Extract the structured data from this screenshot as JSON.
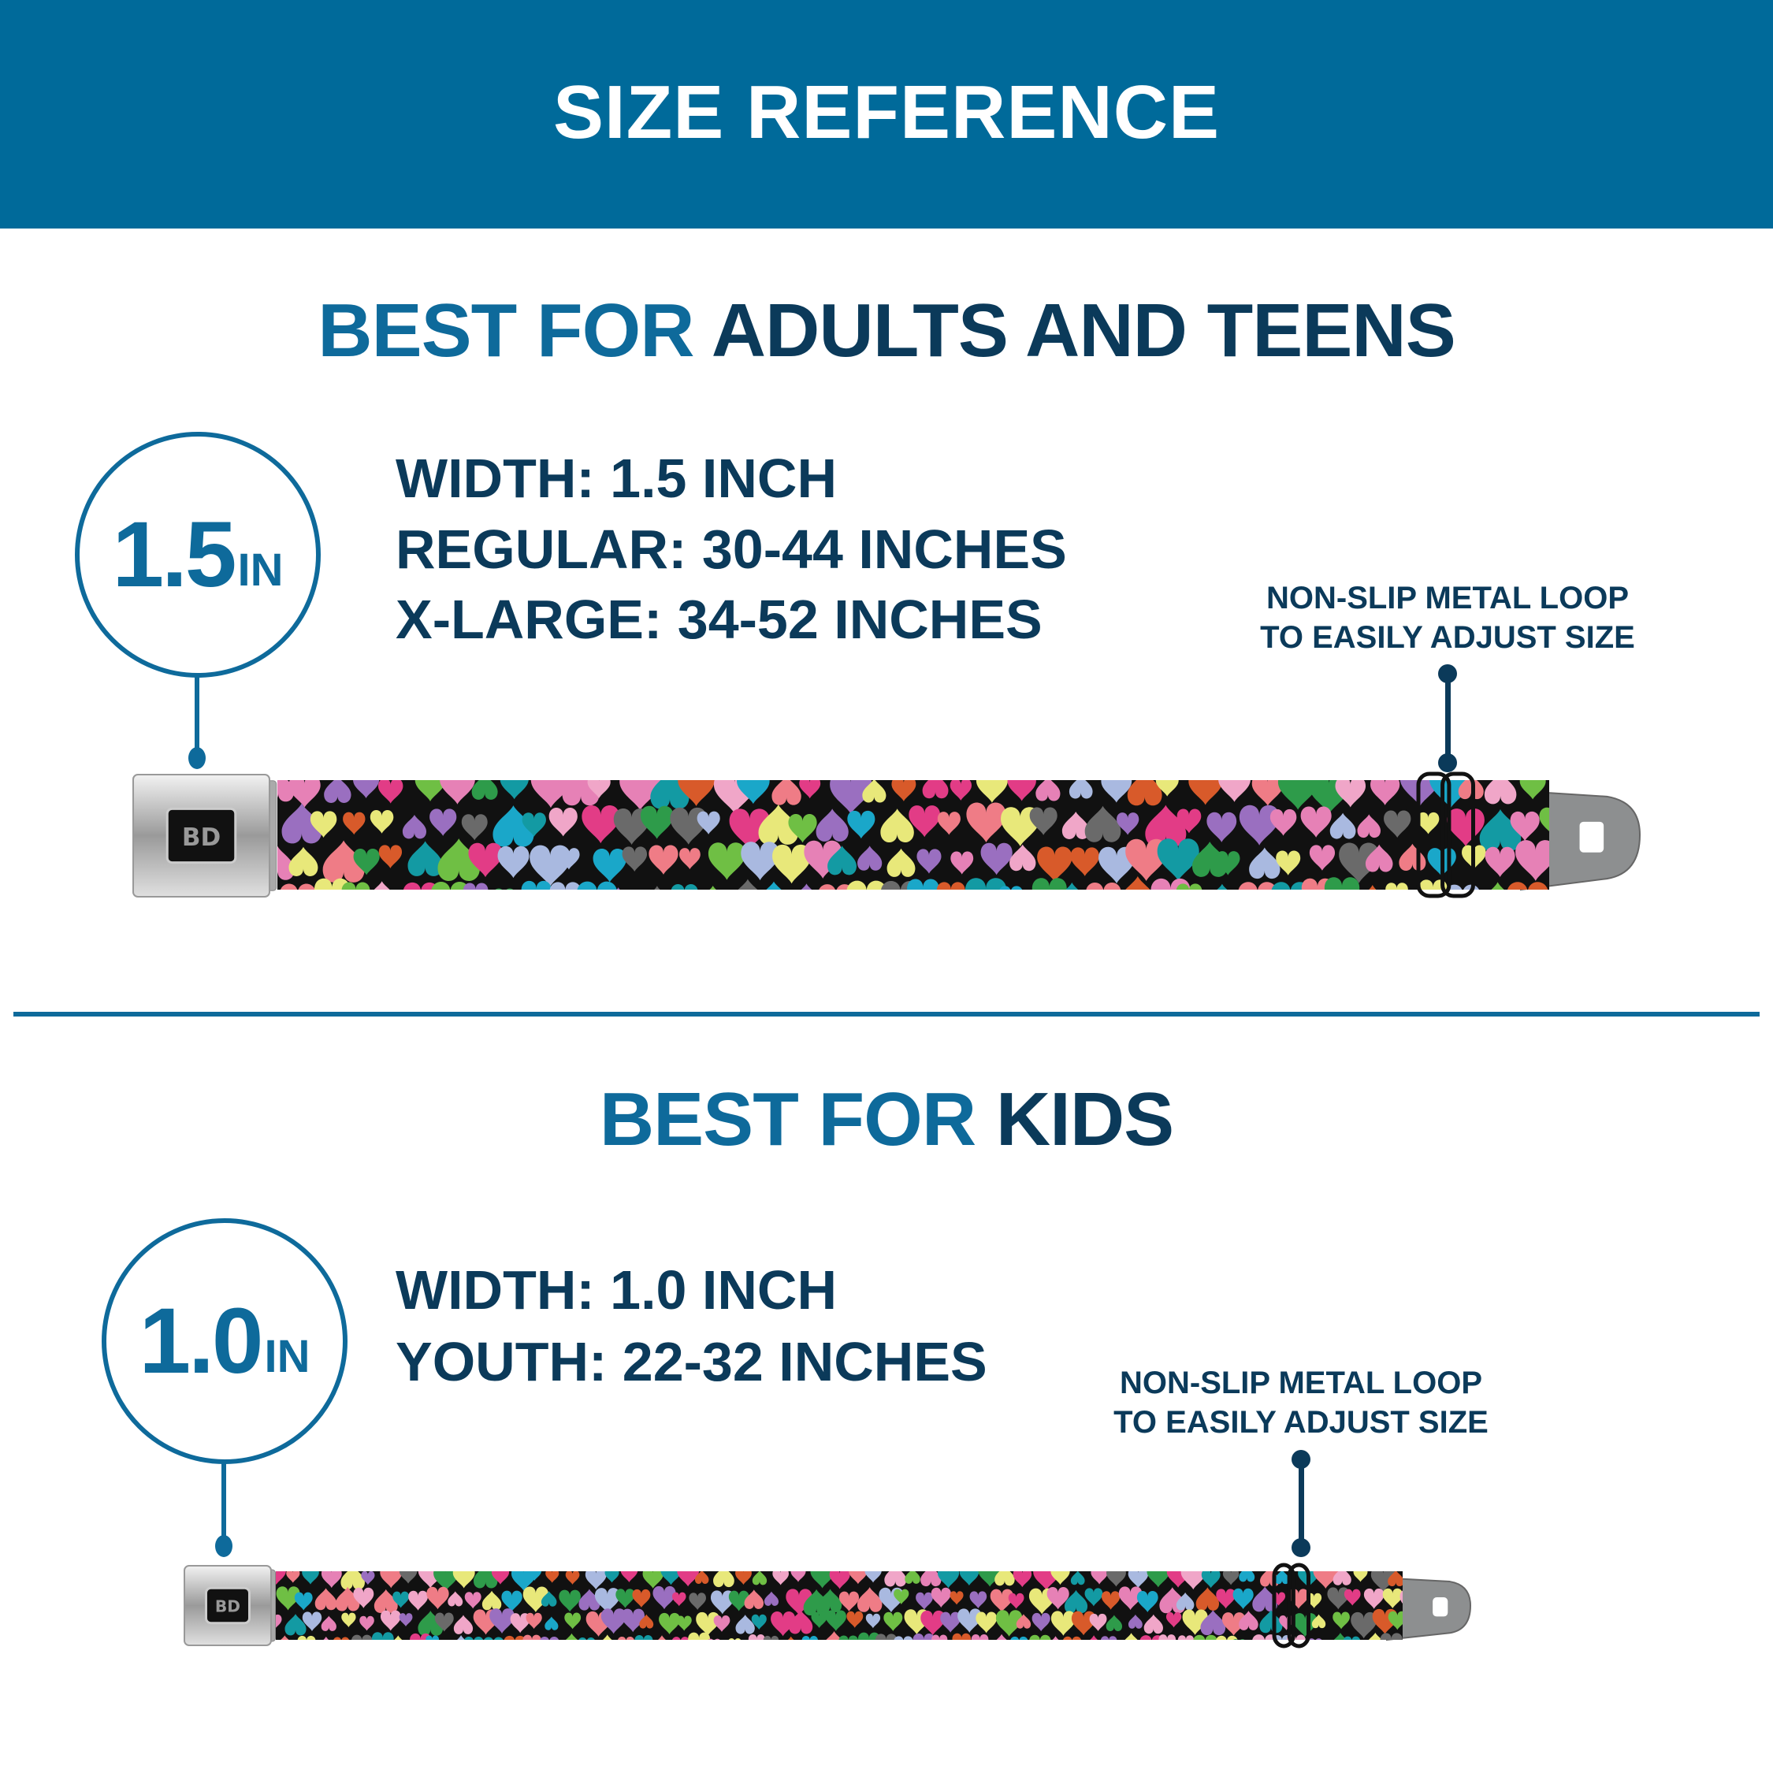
{
  "header": {
    "title": "SIZE REFERENCE"
  },
  "adults": {
    "heading_prefix": "BEST FOR",
    "heading_main": "ADULTS AND TEENS",
    "badge_number": "1.5",
    "badge_unit": "IN",
    "specs": [
      "WIDTH: 1.5 INCH",
      "REGULAR: 30-44 INCHES",
      "X-LARGE: 34-52 INCHES"
    ],
    "callout": [
      "NON-SLIP METAL LOOP",
      "TO EASILY ADJUST SIZE"
    ]
  },
  "kids": {
    "heading_prefix": "BEST FOR",
    "heading_main": "KIDS",
    "badge_number": "1.0",
    "badge_unit": "IN",
    "specs": [
      "WIDTH: 1.0 INCH",
      "YOUTH: 22-32 INCHES"
    ],
    "callout": [
      "NON-SLIP METAL LOOP",
      "TO EASILY ADJUST SIZE"
    ]
  },
  "colors": {
    "header_bg": "#006a9a",
    "accent_blue": "#0e6a9b",
    "navy": "#0b3a5a",
    "strap_bg": "#111111",
    "heart_palette": [
      "#e8e87a",
      "#e23c86",
      "#1aa7c9",
      "#139aa3",
      "#6a6a6a",
      "#e681b6",
      "#9a6fc0",
      "#6fbf44",
      "#f0a6c8",
      "#a9b9e0",
      "#2e9b4a",
      "#d85a2a",
      "#ef7c86"
    ]
  }
}
